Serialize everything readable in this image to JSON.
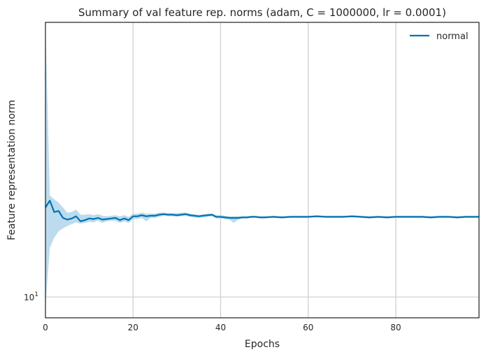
{
  "chart_data": {
    "type": "line",
    "title": "Summary of val feature rep. norms (adam, C = 1000000, lr = 0.0001)",
    "xlabel": "Epochs",
    "ylabel": "Feature representation norm",
    "xlim": [
      0,
      99
    ],
    "ylim": [
      8.3,
      117
    ],
    "yscale": "log",
    "x_ticks": [
      {
        "value": 0,
        "label": "0"
      },
      {
        "value": 20,
        "label": "20"
      },
      {
        "value": 40,
        "label": "40"
      },
      {
        "value": 60,
        "label": "60"
      },
      {
        "value": 80,
        "label": "80"
      }
    ],
    "y_ticks": [
      {
        "value": 10,
        "base": "10",
        "exp": "1"
      }
    ],
    "grid": true,
    "legend_position": "top-right",
    "colors": {
      "line": "#0072b2",
      "band": "#a6cfe8",
      "grid": "#cccccc",
      "spine": "#262626"
    },
    "series": [
      {
        "name": "normal",
        "x": [
          0,
          1,
          2,
          3,
          4,
          5,
          6,
          7,
          8,
          9,
          10,
          11,
          12,
          13,
          14,
          15,
          16,
          17,
          18,
          19,
          20,
          21,
          22,
          23,
          24,
          25,
          26,
          27,
          28,
          29,
          30,
          31,
          32,
          33,
          34,
          35,
          36,
          37,
          38,
          39,
          40,
          41,
          42,
          43,
          44,
          45,
          46,
          47,
          48,
          49,
          50,
          52,
          54,
          56,
          58,
          60,
          62,
          64,
          66,
          68,
          70,
          72,
          74,
          76,
          78,
          80,
          82,
          84,
          86,
          88,
          90,
          92,
          94,
          96,
          98,
          99
        ],
        "y": [
          22.3,
          23.7,
          21.4,
          21.6,
          20.3,
          20.0,
          20.2,
          20.6,
          19.7,
          19.9,
          20.2,
          20.1,
          20.3,
          20.0,
          20.1,
          20.2,
          20.3,
          19.9,
          20.2,
          19.9,
          20.6,
          20.6,
          20.8,
          20.6,
          20.7,
          20.7,
          20.9,
          21.0,
          20.9,
          20.9,
          20.8,
          20.9,
          21.0,
          20.8,
          20.7,
          20.6,
          20.7,
          20.8,
          20.9,
          20.5,
          20.5,
          20.4,
          20.3,
          20.3,
          20.3,
          20.4,
          20.4,
          20.5,
          20.5,
          20.4,
          20.4,
          20.5,
          20.4,
          20.5,
          20.5,
          20.5,
          20.6,
          20.5,
          20.5,
          20.5,
          20.6,
          20.5,
          20.4,
          20.5,
          20.4,
          20.5,
          20.5,
          20.5,
          20.5,
          20.4,
          20.5,
          20.5,
          20.4,
          20.5,
          20.5,
          20.5
        ],
        "band_upper": [
          115,
          24.8,
          24.0,
          23.3,
          22.3,
          21.3,
          21.4,
          21.9,
          20.9,
          20.9,
          21.0,
          20.8,
          21.0,
          20.7,
          20.6,
          20.7,
          20.8,
          20.6,
          20.8,
          20.5,
          21.1,
          21.1,
          21.3,
          21.1,
          21.1,
          21.1,
          21.3,
          21.3,
          21.2,
          21.2,
          21.2,
          21.3,
          21.3,
          21.1,
          21.0,
          20.9,
          21.0,
          21.1,
          21.1,
          20.8,
          20.8,
          20.7,
          20.6,
          20.6,
          20.6,
          20.6,
          20.6,
          20.7,
          20.7,
          20.6,
          20.6,
          20.7,
          20.6,
          20.7,
          20.7,
          20.7,
          20.8,
          20.7,
          20.7,
          20.7,
          20.8,
          20.7,
          20.6,
          20.7,
          20.6,
          20.7,
          20.7,
          20.7,
          20.7,
          20.6,
          20.7,
          20.7,
          20.6,
          20.7,
          20.7,
          20.7
        ],
        "band_lower": [
          9.2,
          15.5,
          17.0,
          18.0,
          18.5,
          18.9,
          19.2,
          19.5,
          19.3,
          19.4,
          19.6,
          19.5,
          19.8,
          19.4,
          19.7,
          19.8,
          19.8,
          19.4,
          19.7,
          19.4,
          20.1,
          20.1,
          20.3,
          19.7,
          20.3,
          20.3,
          20.5,
          20.7,
          20.6,
          20.6,
          20.5,
          20.6,
          20.7,
          20.5,
          20.4,
          20.3,
          20.4,
          20.5,
          20.6,
          20.2,
          20.2,
          20.1,
          20.0,
          19.4,
          20.0,
          20.2,
          20.2,
          20.3,
          20.3,
          20.2,
          20.2,
          20.3,
          20.2,
          20.3,
          20.3,
          20.3,
          20.4,
          20.3,
          20.3,
          20.3,
          20.4,
          20.3,
          20.2,
          20.3,
          20.2,
          20.3,
          20.3,
          20.3,
          20.3,
          20.2,
          20.3,
          20.3,
          20.2,
          20.3,
          20.3,
          20.3
        ]
      }
    ]
  }
}
